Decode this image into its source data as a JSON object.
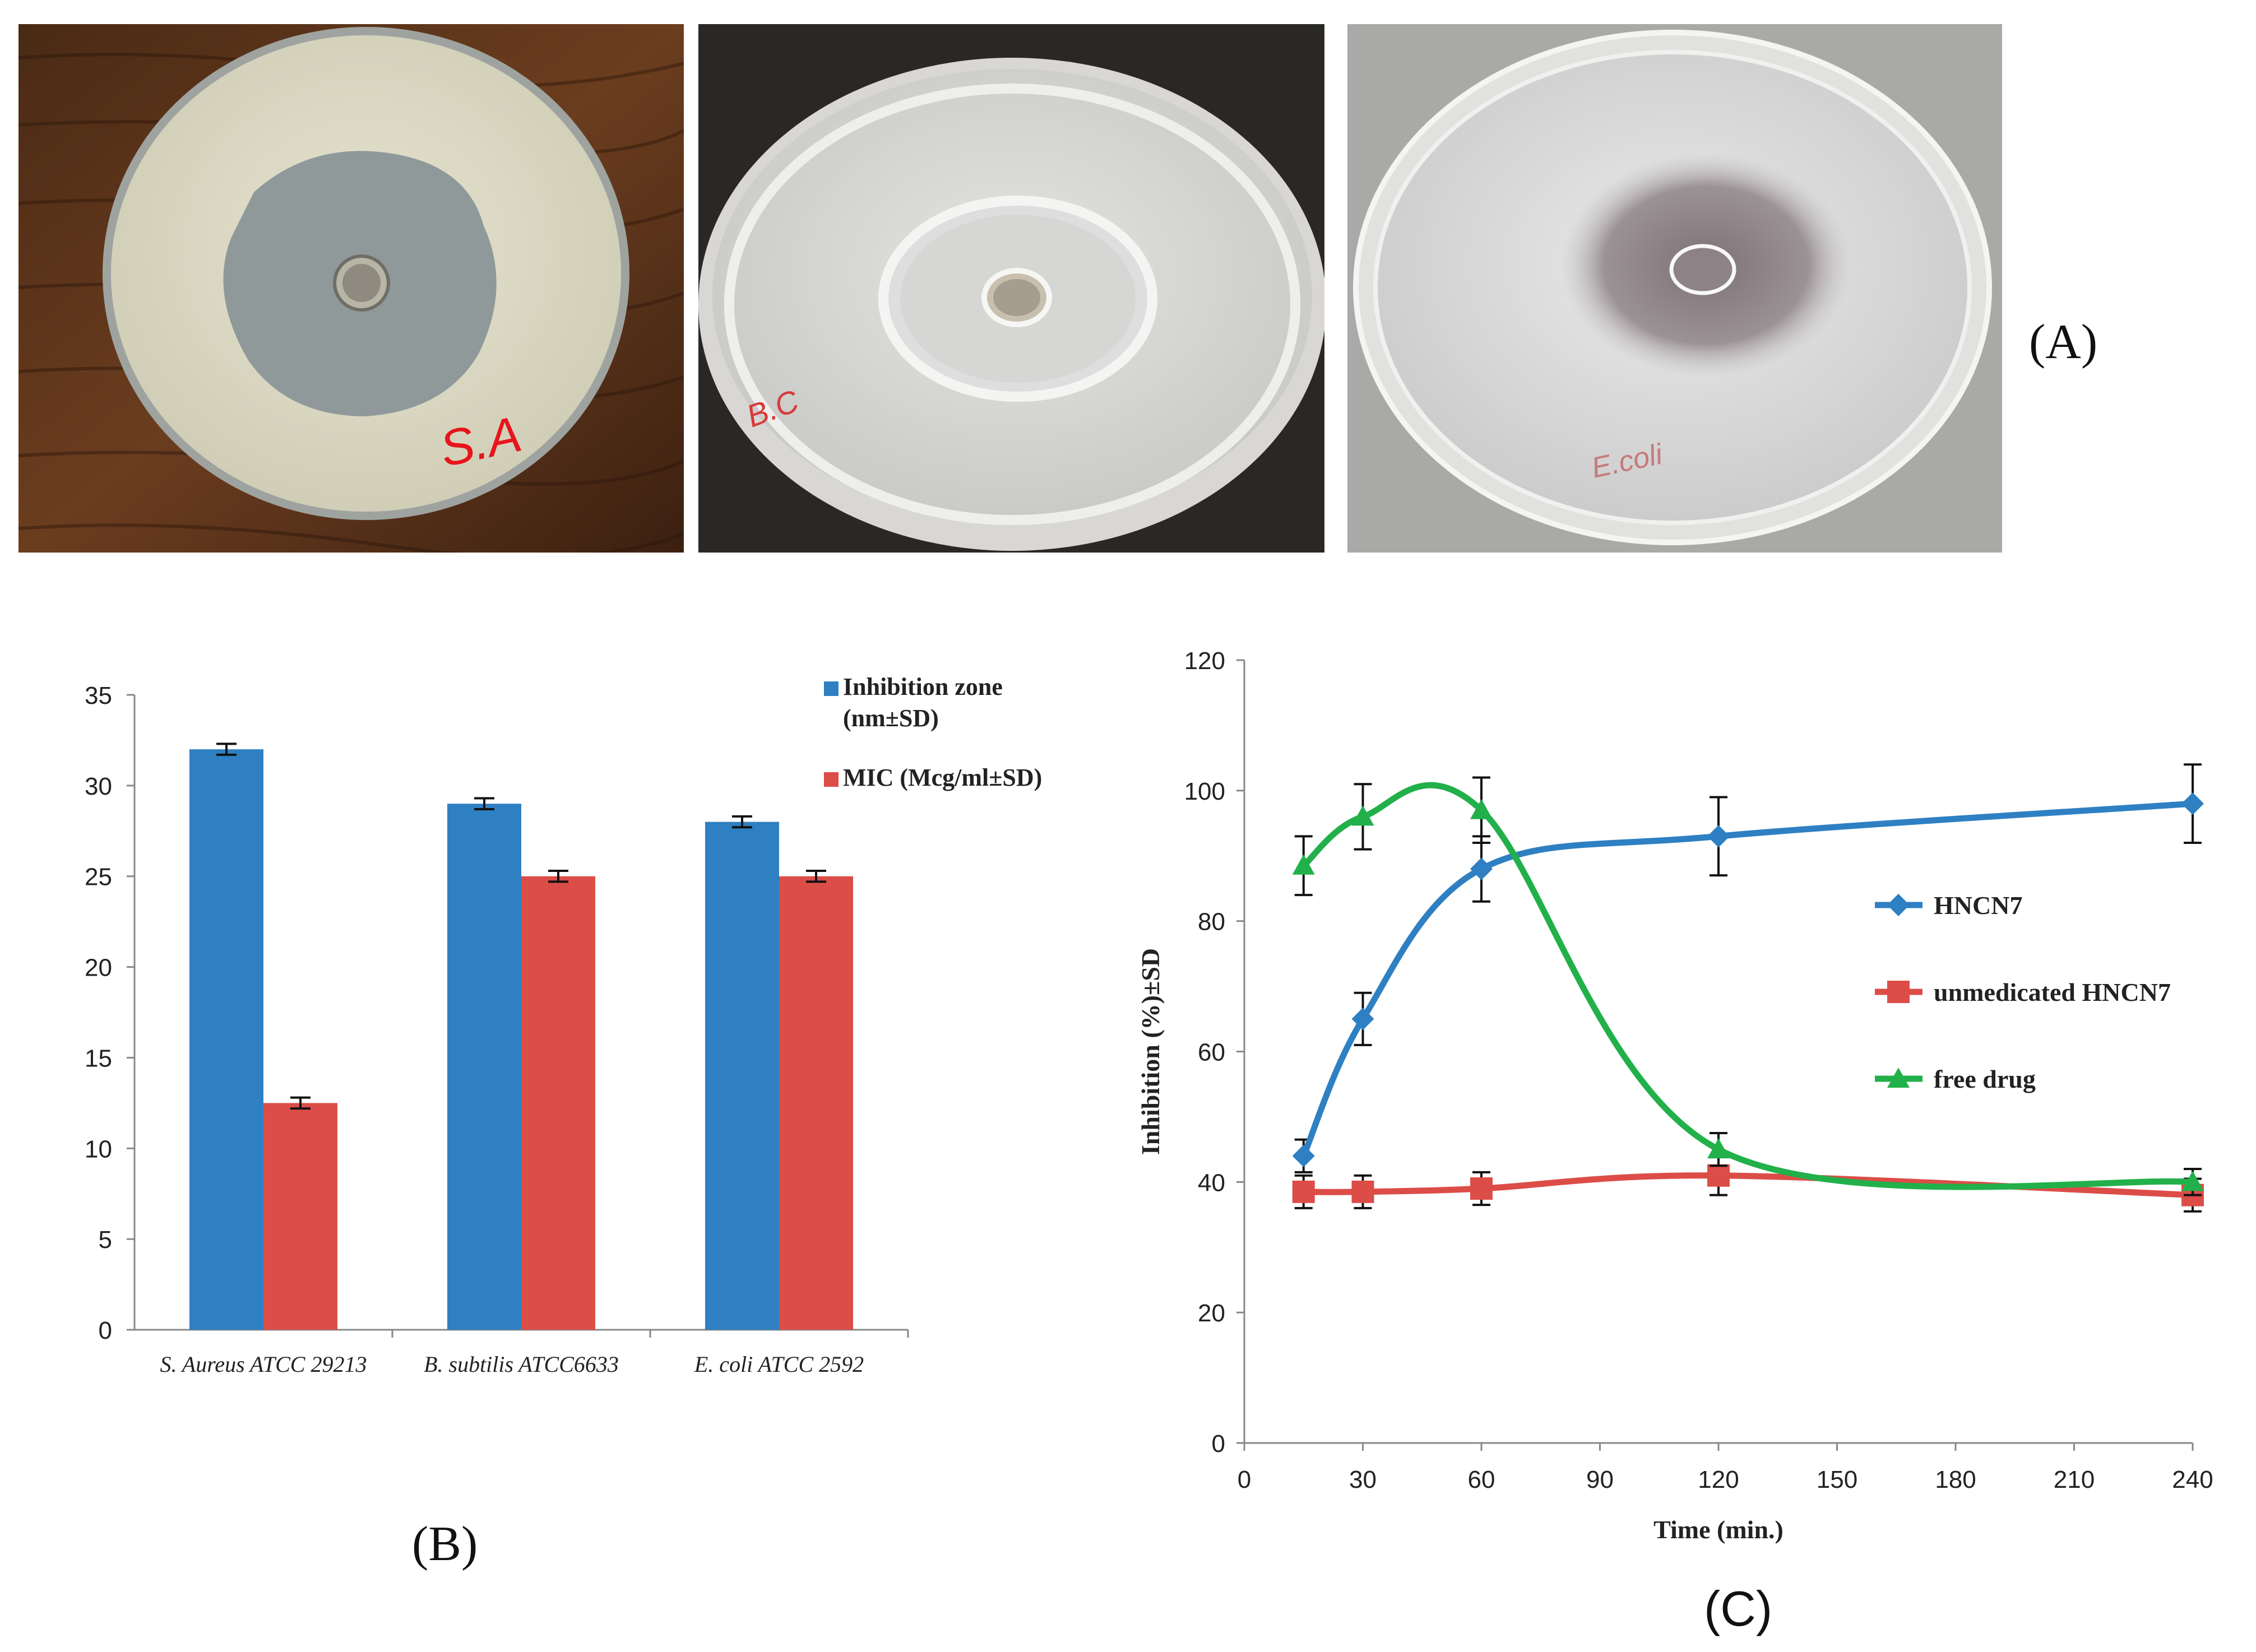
{
  "panels": {
    "a": {
      "tag": "(A)",
      "plate_labels": [
        "S.A",
        "B.C",
        "E.coli"
      ]
    },
    "b": {
      "tag": "(B)"
    },
    "c": {
      "tag": "(C)"
    }
  },
  "chart_data": [
    {
      "type": "bar",
      "categories": [
        "S. Aureus ATCC 29213",
        "B. subtilis ATCC6633",
        "E. coli ATCC 2592"
      ],
      "series": [
        {
          "name": "Inhibition zone (nm±SD)",
          "legend_lines": [
            "Inhibition zone",
            "(nm±SD)"
          ],
          "values": [
            32,
            29,
            28
          ],
          "errors": [
            0.3,
            0.3,
            0.3
          ],
          "color": "#2e80c2"
        },
        {
          "name": "MIC (Mcg/ml±SD)",
          "legend_lines": [
            "MIC (Mcg/ml±SD)"
          ],
          "values": [
            12.5,
            25,
            25
          ],
          "errors": [
            0.3,
            0.3,
            0.3
          ],
          "color": "#dc4d48"
        }
      ],
      "ylim": [
        0,
        35
      ],
      "yticks": [
        "0",
        "5",
        "10",
        "15",
        "20",
        "25",
        "30",
        "35"
      ],
      "xlabel": "",
      "ylabel": "",
      "grid": false,
      "legend": "top-right"
    },
    {
      "type": "line",
      "xlabel": "Time (min.)",
      "ylabel": "Inhibition (%)±SD",
      "xlim": [
        0,
        240
      ],
      "ylim": [
        0,
        120
      ],
      "xticks": [
        "0",
        "30",
        "60",
        "90",
        "120",
        "150",
        "180",
        "210",
        "240"
      ],
      "yticks": [
        "0",
        "20",
        "40",
        "60",
        "80",
        "100",
        "120"
      ],
      "grid": false,
      "legend": "right",
      "series": [
        {
          "name": "HNCN7",
          "marker": "diamond",
          "color": "#2e80c2",
          "x": [
            15,
            30,
            60,
            120,
            240
          ],
          "y": [
            44,
            65,
            88,
            93,
            98
          ],
          "err": [
            2.5,
            4,
            5,
            6,
            6
          ]
        },
        {
          "name": "unmedicated HNCN7",
          "marker": "square",
          "color": "#dc4d48",
          "x": [
            15,
            30,
            60,
            120,
            240
          ],
          "y": [
            38.5,
            38.5,
            39,
            41,
            38
          ],
          "err": [
            2.5,
            2.5,
            2.5,
            3,
            2.5
          ]
        },
        {
          "name": "free drug",
          "marker": "triangle",
          "color": "#22b04a",
          "x": [
            15,
            30,
            60,
            120,
            240
          ],
          "y": [
            88.5,
            96,
            97,
            45,
            40
          ],
          "err": [
            4.5,
            5,
            5,
            2.5,
            2
          ]
        }
      ]
    }
  ]
}
